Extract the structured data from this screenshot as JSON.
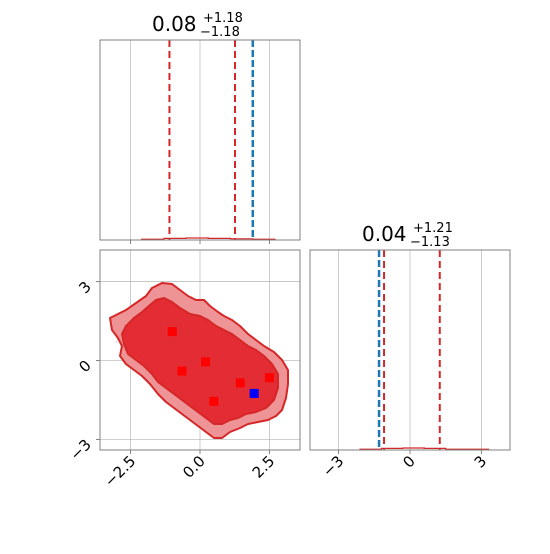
{
  "chart_data": {
    "type": "corner",
    "colors": {
      "posterior": "#d62728",
      "truth": "#1f77b4",
      "estimate": "#ff0000",
      "highlight": "#0000ff"
    },
    "grid": true,
    "params": [
      {
        "title_value": "0.08",
        "title_plus": "+1.18",
        "title_minus": "−1.18",
        "range": [
          -3.6,
          3.6
        ],
        "ticks": [
          -2.5,
          0.0,
          2.5
        ],
        "tick_labels": [
          "−2.5",
          "0.0",
          "2.5"
        ],
        "quantiles": [
          -1.1,
          0.08,
          1.26
        ],
        "truth": 1.9,
        "hist_bins": [
          -2.1,
          -1.3,
          -0.5,
          0.3,
          1.1,
          1.9
        ],
        "hist_counts": [
          0.02,
          0.04,
          0.05,
          0.04,
          0.03,
          0.02
        ],
        "hist_max": 5
      },
      {
        "title_value": "0.04",
        "title_plus": "+1.21",
        "title_minus": "−1.13",
        "range": [
          -4.2,
          4.2
        ],
        "ticks": [
          -3,
          0,
          3
        ],
        "tick_labels": [
          "−3",
          "0",
          "3"
        ],
        "quantiles": [
          -1.09,
          0.04,
          1.25
        ],
        "truth": -1.3,
        "hist_bins": [
          -2.1,
          -1.2,
          -0.3,
          0.6,
          1.5,
          2.4
        ],
        "hist_counts": [
          0.02,
          0.04,
          0.05,
          0.04,
          0.02,
          0.02
        ],
        "hist_max": 5,
        "y_range_2d": [
          -3.4,
          4.2
        ],
        "y_ticks_2d": [
          -3,
          0,
          3
        ],
        "y_tick_labels_2d": [
          "−3",
          "0",
          "3"
        ]
      }
    ],
    "estimates": [
      {
        "x": -1.0,
        "y": 1.1
      },
      {
        "x": 0.2,
        "y": -0.05
      },
      {
        "x": -0.65,
        "y": -0.4
      },
      {
        "x": 1.45,
        "y": -0.85
      },
      {
        "x": 2.5,
        "y": -0.65
      },
      {
        "x": 0.5,
        "y": -1.55
      }
    ],
    "highlight_point": {
      "x": 1.95,
      "y": -1.25
    }
  }
}
